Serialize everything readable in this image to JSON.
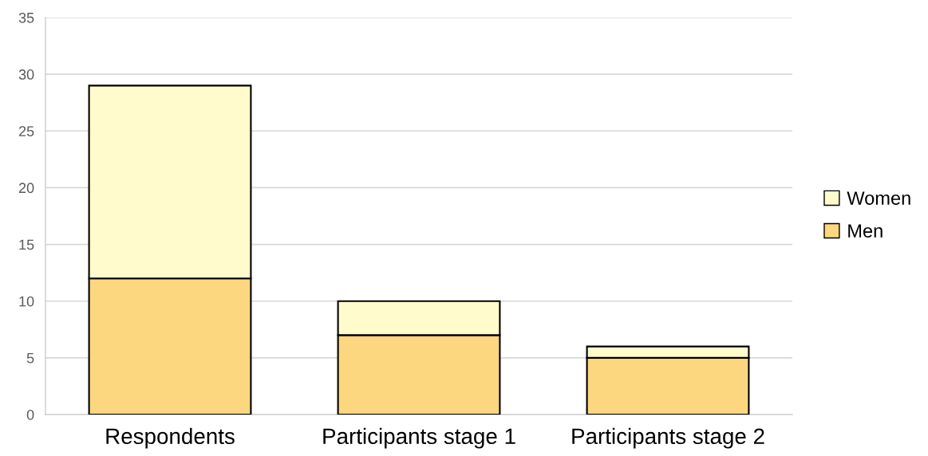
{
  "chart_data": {
    "type": "bar",
    "stacked": true,
    "categories": [
      "Respondents",
      "Participants stage 1",
      "Participants stage 2"
    ],
    "series": [
      {
        "name": "Men",
        "color": "#fdd77f",
        "values": [
          12,
          7,
          5
        ]
      },
      {
        "name": "Women",
        "color": "#fffbcc",
        "values": [
          17,
          3,
          1
        ]
      }
    ],
    "ylim": [
      0,
      35
    ],
    "yticks": [
      0,
      5,
      10,
      15,
      20,
      25,
      30,
      35
    ],
    "grid": "y",
    "legend": "right"
  }
}
